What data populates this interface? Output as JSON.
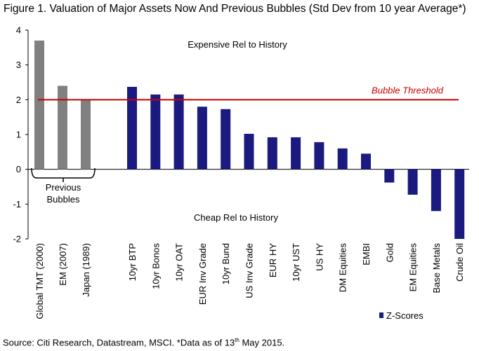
{
  "title": "Figure 1. Valuation of Major Assets Now And Previous Bubbles (Std Dev from 10 year Average*)",
  "source": {
    "before": "Source: Citi Research, Datastream, MSCI. *Data as of 13",
    "sup": "th",
    "after": " May 2015."
  },
  "chart_data": {
    "type": "bar",
    "title": "Figure 1. Valuation of Major Assets Now And Previous Bubbles (Std Dev from 10 year Average*)",
    "ylabel": "",
    "xlabel": "",
    "ylim": [
      -2,
      4
    ],
    "yticks": [
      4,
      3,
      2,
      1,
      0,
      -1,
      -2
    ],
    "grid": false,
    "colors": {
      "previous": "#808080",
      "current": "#1a1a80",
      "threshold": "#cc0000"
    },
    "previous_bubbles": {
      "group_label": "Previous Bubbles",
      "categories": [
        "Global TMT (2000)",
        "EM (2007)",
        "Japan (1989)"
      ],
      "values": [
        3.7,
        2.4,
        2.0
      ]
    },
    "series": [
      {
        "name": "Z-Scores",
        "categories": [
          "10yr BTP",
          "10yr Bonos",
          "10yr OAT",
          "EUR Inv Grade",
          "10yr Bund",
          "US Inv Grade",
          "EUR HY",
          "10yr UST",
          "US HY",
          "DM Equities",
          "EMBI",
          "Gold",
          "EM Equities",
          "Base Metals",
          "Crude Oil"
        ],
        "values": [
          2.37,
          2.15,
          2.15,
          1.8,
          1.73,
          1.02,
          0.92,
          0.92,
          0.78,
          0.6,
          0.45,
          -0.38,
          -0.73,
          -1.2,
          -2.0
        ]
      }
    ],
    "threshold": {
      "value": 2.0,
      "label": "Bubble Threshold"
    },
    "annotations": {
      "expensive": "Expensive Rel to History",
      "cheap": "Cheap Rel to History"
    },
    "legend": {
      "position": "bottom-right",
      "label": "Z-Scores"
    }
  }
}
